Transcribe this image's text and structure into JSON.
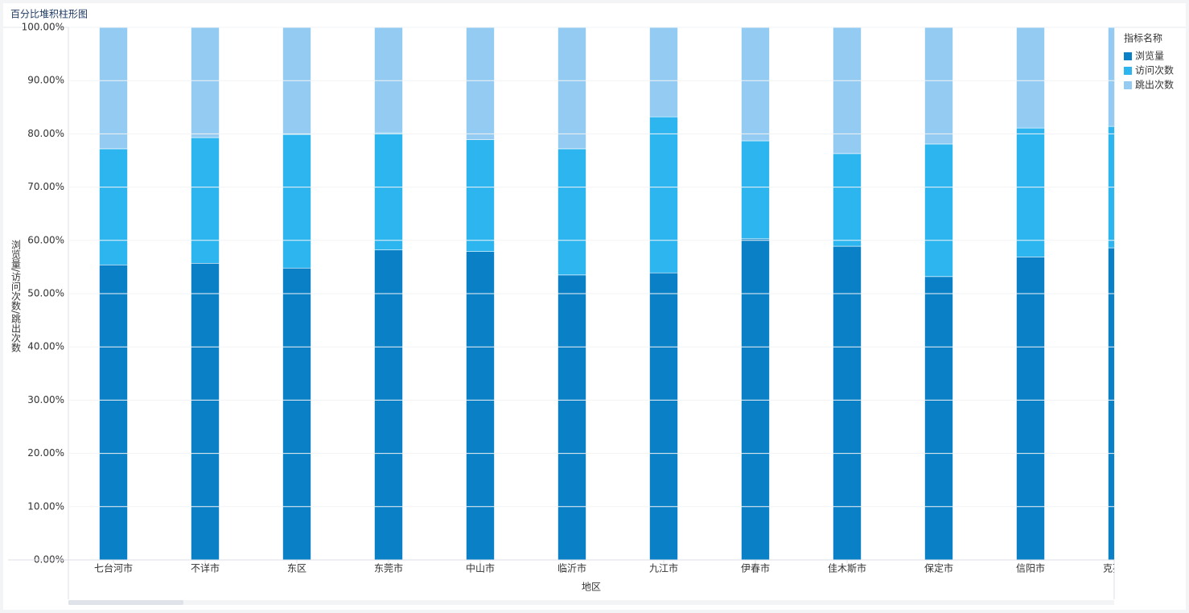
{
  "chart_data": {
    "type": "bar",
    "stacked": true,
    "title": "百分比堆积柱形图",
    "x_label": "地区",
    "y_label": "浏览量/访问次数/跳出次数",
    "legend_title": "指标名称",
    "legend": "right",
    "categories": [
      "七台河市",
      "不详市",
      "东区",
      "东莞市",
      "中山市",
      "临沂市",
      "九江市",
      "伊春市",
      "佳木斯市",
      "保定市",
      "信阳市",
      "克孜勒苏"
    ],
    "series": [
      {
        "name": "浏览量",
        "color": "#0a80c6",
        "values": [
          55.4,
          55.7,
          54.8,
          58.2,
          57.9,
          53.5,
          53.9,
          60.3,
          58.9,
          53.2,
          56.9,
          58.6
        ]
      },
      {
        "name": "访问次数",
        "color": "#2db5f0",
        "values": [
          21.8,
          23.6,
          25.1,
          22.0,
          21.0,
          23.7,
          29.3,
          18.4,
          17.4,
          24.9,
          24.2,
          22.8
        ]
      },
      {
        "name": "跳出次数",
        "color": "#93cbf2",
        "values": [
          22.8,
          20.7,
          20.1,
          19.8,
          21.1,
          22.8,
          16.8,
          21.3,
          23.7,
          21.9,
          18.9,
          18.6
        ]
      }
    ],
    "ylim": [
      0,
      100
    ],
    "yticks": [
      {
        "value": 0,
        "label": "0.00%"
      },
      {
        "value": 10,
        "label": "10.00%"
      },
      {
        "value": 20,
        "label": "20.00%"
      },
      {
        "value": 30,
        "label": "30.00%"
      },
      {
        "value": 40,
        "label": "40.00%"
      },
      {
        "value": 50,
        "label": "50.00%"
      },
      {
        "value": 60,
        "label": "60.00%"
      },
      {
        "value": 70,
        "label": "70.00%"
      },
      {
        "value": 80,
        "label": "80.00%"
      },
      {
        "value": 90,
        "label": "90.00%"
      },
      {
        "value": 100,
        "label": "100.00%"
      }
    ],
    "grid": true
  }
}
